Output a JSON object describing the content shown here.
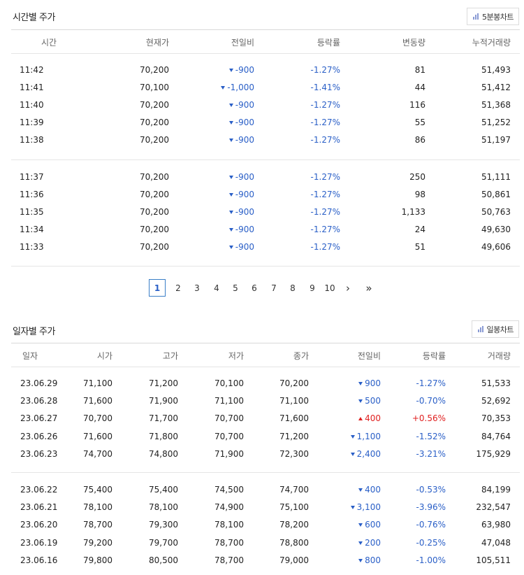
{
  "time_section": {
    "title": "시간별 주가",
    "chart_button": "5분봉차트",
    "headers": [
      "시간",
      "현재가",
      "전일비",
      "등락률",
      "변동량",
      "누적거래량"
    ],
    "group1": [
      {
        "time": "11:42",
        "price": "70,200",
        "change": "-900",
        "rate": "-1.27%",
        "vol": "81",
        "cum": "51,493"
      },
      {
        "time": "11:41",
        "price": "70,100",
        "change": "-1,000",
        "rate": "-1.41%",
        "vol": "44",
        "cum": "51,412"
      },
      {
        "time": "11:40",
        "price": "70,200",
        "change": "-900",
        "rate": "-1.27%",
        "vol": "116",
        "cum": "51,368"
      },
      {
        "time": "11:39",
        "price": "70,200",
        "change": "-900",
        "rate": "-1.27%",
        "vol": "55",
        "cum": "51,252"
      },
      {
        "time": "11:38",
        "price": "70,200",
        "change": "-900",
        "rate": "-1.27%",
        "vol": "86",
        "cum": "51,197"
      }
    ],
    "group2": [
      {
        "time": "11:37",
        "price": "70,200",
        "change": "-900",
        "rate": "-1.27%",
        "vol": "250",
        "cum": "51,111"
      },
      {
        "time": "11:36",
        "price": "70,200",
        "change": "-900",
        "rate": "-1.27%",
        "vol": "98",
        "cum": "50,861"
      },
      {
        "time": "11:35",
        "price": "70,200",
        "change": "-900",
        "rate": "-1.27%",
        "vol": "1,133",
        "cum": "50,763"
      },
      {
        "time": "11:34",
        "price": "70,200",
        "change": "-900",
        "rate": "-1.27%",
        "vol": "24",
        "cum": "49,630"
      },
      {
        "time": "11:33",
        "price": "70,200",
        "change": "-900",
        "rate": "-1.27%",
        "vol": "51",
        "cum": "49,606"
      }
    ]
  },
  "pagination": {
    "pages": [
      "1",
      "2",
      "3",
      "4",
      "5",
      "6",
      "7",
      "8",
      "9",
      "10"
    ],
    "active": "1",
    "next": "›",
    "last": "»"
  },
  "daily_section": {
    "title": "일자별 주가",
    "chart_button": "일봉차트",
    "headers": [
      "일자",
      "시가",
      "고가",
      "저가",
      "종가",
      "전일비",
      "등락률",
      "거래량"
    ],
    "group1": [
      {
        "date": "23.06.29",
        "open": "71,100",
        "high": "71,200",
        "low": "70,100",
        "close": "70,200",
        "dir": "down",
        "change": "900",
        "rate": "-1.27%",
        "vol": "51,533"
      },
      {
        "date": "23.06.28",
        "open": "71,600",
        "high": "71,900",
        "low": "71,100",
        "close": "71,100",
        "dir": "down",
        "change": "500",
        "rate": "-0.70%",
        "vol": "52,692"
      },
      {
        "date": "23.06.27",
        "open": "70,700",
        "high": "71,700",
        "low": "70,700",
        "close": "71,600",
        "dir": "up",
        "change": "400",
        "rate": "+0.56%",
        "vol": "70,353"
      },
      {
        "date": "23.06.26",
        "open": "71,600",
        "high": "71,800",
        "low": "70,700",
        "close": "71,200",
        "dir": "down",
        "change": "1,100",
        "rate": "-1.52%",
        "vol": "84,764"
      },
      {
        "date": "23.06.23",
        "open": "74,700",
        "high": "74,800",
        "low": "71,900",
        "close": "72,300",
        "dir": "down",
        "change": "2,400",
        "rate": "-3.21%",
        "vol": "175,929"
      }
    ],
    "group2": [
      {
        "date": "23.06.22",
        "open": "75,400",
        "high": "75,400",
        "low": "74,500",
        "close": "74,700",
        "dir": "down",
        "change": "400",
        "rate": "-0.53%",
        "vol": "84,199"
      },
      {
        "date": "23.06.21",
        "open": "78,100",
        "high": "78,100",
        "low": "74,900",
        "close": "75,100",
        "dir": "down",
        "change": "3,100",
        "rate": "-3.96%",
        "vol": "232,547"
      },
      {
        "date": "23.06.20",
        "open": "78,700",
        "high": "79,300",
        "low": "78,100",
        "close": "78,200",
        "dir": "down",
        "change": "600",
        "rate": "-0.76%",
        "vol": "63,980"
      },
      {
        "date": "23.06.19",
        "open": "79,200",
        "high": "79,700",
        "low": "78,700",
        "close": "78,800",
        "dir": "down",
        "change": "200",
        "rate": "-0.25%",
        "vol": "47,048"
      },
      {
        "date": "23.06.16",
        "open": "79,800",
        "high": "80,500",
        "low": "78,700",
        "close": "79,000",
        "dir": "down",
        "change": "800",
        "rate": "-1.00%",
        "vol": "105,511"
      }
    ]
  },
  "colors": {
    "down": "#2a5fc7",
    "up": "#e02020",
    "accent": "#3a7ec7"
  },
  "icons": {
    "chart_button_icon": "bar-chart-icon"
  }
}
